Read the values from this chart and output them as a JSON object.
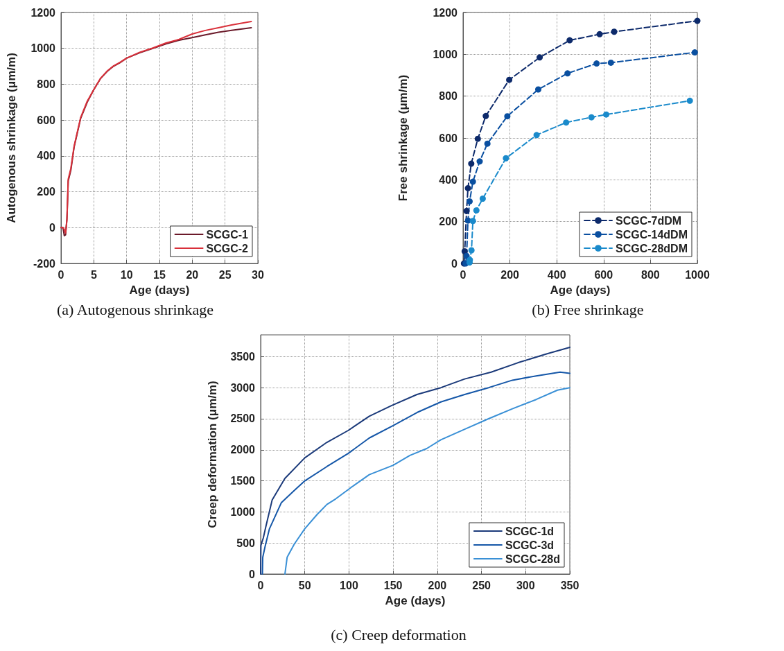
{
  "chart_data": [
    {
      "type": "line",
      "title": "(a) Autogenous shrinkage",
      "xlabel": "Age (days)",
      "ylabel": "Autogenous shrinkage (μm/m)",
      "xlim": [
        0,
        30
      ],
      "xticks": [
        0,
        5,
        10,
        15,
        20,
        25,
        30
      ],
      "ylim": [
        -200,
        1200
      ],
      "yticks": [
        -200,
        0,
        200,
        400,
        600,
        800,
        1000,
        1200
      ],
      "grid": true,
      "legend": "bottom right",
      "marker": "none",
      "line_style": "solid",
      "series": [
        {
          "name": "SCGC-1",
          "color": "#6b1a2a",
          "x": [
            0,
            0.3,
            0.5,
            0.7,
            0.9,
            1.0,
            1.1,
            1.5,
            2,
            3,
            4,
            5,
            6,
            7,
            8,
            9,
            10,
            12,
            14,
            16,
            18,
            20,
            22,
            24,
            26,
            29
          ],
          "values": [
            0,
            0,
            -45,
            -40,
            50,
            150,
            260,
            320,
            450,
            610,
            700,
            770,
            830,
            870,
            900,
            920,
            945,
            975,
            1000,
            1025,
            1045,
            1060,
            1075,
            1090,
            1100,
            1115
          ]
        },
        {
          "name": "SCGC-2",
          "color": "#d9303a",
          "x": [
            0,
            0.3,
            0.5,
            0.7,
            0.9,
            1.0,
            1.1,
            1.5,
            2,
            3,
            4,
            5,
            6,
            7,
            8,
            9,
            10,
            12,
            14,
            16,
            18,
            20,
            22,
            24,
            26,
            29
          ],
          "values": [
            0,
            0,
            -10,
            -30,
            40,
            150,
            270,
            330,
            455,
            615,
            705,
            770,
            832,
            872,
            902,
            922,
            945,
            978,
            1002,
            1030,
            1050,
            1080,
            1100,
            1115,
            1130,
            1150
          ]
        }
      ]
    },
    {
      "type": "line",
      "title": "(b) Free shrinkage",
      "xlabel": "Age (days)",
      "ylabel": "Free shrinkage (μm/m)",
      "xlim": [
        0,
        1000
      ],
      "xticks": [
        0,
        200,
        400,
        600,
        800,
        1000
      ],
      "ylim": [
        0,
        1200
      ],
      "yticks": [
        0,
        200,
        400,
        600,
        800,
        1000,
        1200
      ],
      "grid": true,
      "legend": "bottom right",
      "marker": "circle",
      "line_style": "dashed",
      "series": [
        {
          "name": "SCGC-7dDM",
          "color": "#0d2a6b",
          "x": [
            4,
            7,
            15,
            21,
            35,
            63,
            97,
            197,
            327,
            455,
            583,
            645,
            1000
          ],
          "values": [
            0,
            58,
            251,
            360,
            477,
            596,
            705,
            878,
            985,
            1067,
            1096,
            1108,
            1160
          ]
        },
        {
          "name": "SCGC-14dDM",
          "color": "#0a4fa0",
          "x": [
            11,
            15,
            21,
            28,
            42,
            71,
            104,
            189,
            321,
            446,
            570,
            631,
            989
          ],
          "values": [
            0,
            36,
            205,
            297,
            391,
            488,
            573,
            704,
            832,
            909,
            956,
            960,
            1009
          ]
        },
        {
          "name": "SCGC-28dDM",
          "color": "#1a8acb",
          "x": [
            28,
            29,
            36,
            42,
            57,
            84,
            183,
            314,
            440,
            548,
            611,
            968
          ],
          "values": [
            5,
            17,
            63,
            203,
            254,
            310,
            503,
            614,
            674,
            699,
            712,
            778
          ]
        }
      ]
    },
    {
      "type": "line",
      "title": "(c) Creep deformation",
      "xlabel": "Age (days)",
      "ylabel": "Creep deformation (μm/m)",
      "xlim": [
        0,
        350
      ],
      "xticks": [
        0,
        50,
        100,
        150,
        200,
        250,
        300,
        350
      ],
      "ylim": [
        0,
        3850
      ],
      "yticks": [
        0,
        500,
        1000,
        1500,
        2000,
        2500,
        3000,
        3500
      ],
      "grid": true,
      "legend": "bottom right",
      "marker": "none",
      "line_style": "solid",
      "series": [
        {
          "name": "SCGC-1d",
          "color": "#1b3a7a",
          "x": [
            0,
            0.3,
            3,
            6,
            13,
            27.5,
            50,
            75,
            99,
            123,
            148,
            177,
            204,
            231,
            261,
            291,
            323,
            350
          ],
          "values": [
            0,
            460,
            580,
            770,
            1190,
            1540,
            1870,
            2120,
            2310,
            2540,
            2710,
            2890,
            3000,
            3140,
            3250,
            3400,
            3540,
            3650
          ]
        },
        {
          "name": "SCGC-3d",
          "color": "#1557a8",
          "x": [
            2,
            2.4,
            5,
            10,
            23.5,
            37,
            50,
            75,
            99,
            123,
            150,
            177,
            204,
            231,
            258,
            285,
            312,
            339,
            350
          ],
          "values": [
            0,
            270,
            440,
            730,
            1150,
            1330,
            1500,
            1730,
            1940,
            2190,
            2390,
            2600,
            2770,
            2890,
            3000,
            3120,
            3190,
            3250,
            3230
          ]
        },
        {
          "name": "SCGC-28d",
          "color": "#3a90d6",
          "x": [
            27.5,
            30,
            38,
            50,
            64,
            75,
            85,
            102,
            123,
            150,
            169,
            188,
            204,
            231,
            258,
            285,
            312,
            336,
            350
          ],
          "values": [
            0,
            270,
            480,
            730,
            960,
            1120,
            1210,
            1390,
            1600,
            1750,
            1910,
            2020,
            2160,
            2330,
            2500,
            2660,
            2810,
            2960,
            3000
          ]
        }
      ]
    }
  ]
}
